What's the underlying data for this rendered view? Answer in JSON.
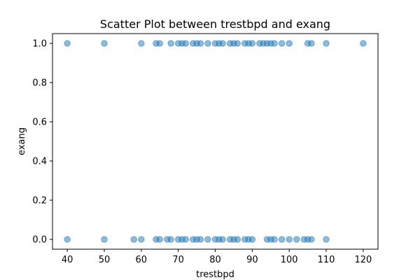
{
  "chart_data": {
    "type": "scatter",
    "title": "Scatter Plot between trestbpd and exang",
    "xlabel": "trestbpd",
    "ylabel": "exang",
    "xlim": [
      36,
      124
    ],
    "ylim": [
      -0.05,
      1.05
    ],
    "xticks": [
      40,
      50,
      60,
      70,
      80,
      90,
      100,
      110,
      120
    ],
    "yticks": [
      0.0,
      0.2,
      0.4,
      0.6,
      0.8,
      1.0
    ],
    "ytick_labels": [
      "0.0",
      "0.2",
      "0.4",
      "0.6",
      "0.8",
      "1.0"
    ],
    "grid": false,
    "marker_color": "#1f77b4",
    "marker_alpha": 0.5,
    "series": [
      {
        "x": [
          40,
          50,
          60,
          64,
          65,
          68,
          70,
          71,
          72,
          74,
          75,
          76,
          78,
          80,
          81,
          82,
          84,
          85,
          86,
          88,
          89,
          90,
          92,
          93,
          94,
          95,
          96,
          98,
          100,
          105,
          106,
          110,
          120
        ],
        "y": [
          1,
          1,
          1,
          1,
          1,
          1,
          1,
          1,
          1,
          1,
          1,
          1,
          1,
          1,
          1,
          1,
          1,
          1,
          1,
          1,
          1,
          1,
          1,
          1,
          1,
          1,
          1,
          1,
          1,
          1,
          1,
          1,
          1
        ]
      },
      {
        "x": [
          40,
          50,
          58,
          60,
          64,
          65,
          67,
          68,
          70,
          71,
          72,
          74,
          75,
          76,
          78,
          80,
          81,
          82,
          84,
          85,
          86,
          88,
          89,
          90,
          94,
          95,
          96,
          98,
          100,
          102,
          104,
          105,
          106,
          110
        ],
        "y": [
          0,
          0,
          0,
          0,
          0,
          0,
          0,
          0,
          0,
          0,
          0,
          0,
          0,
          0,
          0,
          0,
          0,
          0,
          0,
          0,
          0,
          0,
          0,
          0,
          0,
          0,
          0,
          0,
          0,
          0,
          0,
          0,
          0,
          0
        ]
      }
    ]
  }
}
